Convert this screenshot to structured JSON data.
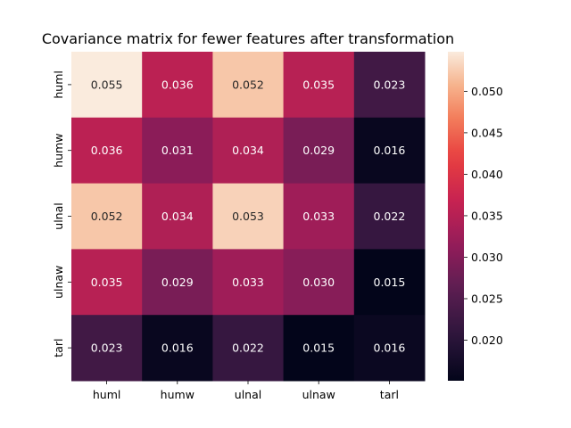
{
  "chart_data": {
    "type": "heatmap",
    "title": "Covariance matrix for fewer features after transformation",
    "x_labels": [
      "huml",
      "humw",
      "ulnal",
      "ulnaw",
      "tarl"
    ],
    "y_labels": [
      "huml",
      "humw",
      "ulnal",
      "ulnaw",
      "tarl"
    ],
    "values": [
      [
        0.05477,
        0.03562,
        0.05215,
        0.03513,
        0.02306
      ],
      [
        0.03562,
        0.03071,
        0.03436,
        0.02899,
        0.01586
      ],
      [
        0.05215,
        0.03436,
        0.05298,
        0.0327,
        0.02164
      ],
      [
        0.03513,
        0.02899,
        0.0327,
        0.0303,
        0.01511
      ],
      [
        0.02306,
        0.01586,
        0.02164,
        0.01511,
        0.0162
      ]
    ],
    "annotations": [
      [
        "0.055",
        "0.036",
        "0.052",
        "0.035",
        "0.023"
      ],
      [
        "0.036",
        "0.031",
        "0.034",
        "0.029",
        "0.016"
      ],
      [
        "0.052",
        "0.034",
        "0.053",
        "0.033",
        "0.022"
      ],
      [
        "0.035",
        "0.029",
        "0.033",
        "0.030",
        "0.015"
      ],
      [
        "0.023",
        "0.016",
        "0.022",
        "0.015",
        "0.016"
      ]
    ],
    "colorbar": {
      "min": 0.01511,
      "max": 0.05477,
      "ticks": [
        "0.020",
        "0.025",
        "0.030",
        "0.035",
        "0.040",
        "0.045",
        "0.050"
      ]
    },
    "colormap": "rocket",
    "grid": false
  }
}
